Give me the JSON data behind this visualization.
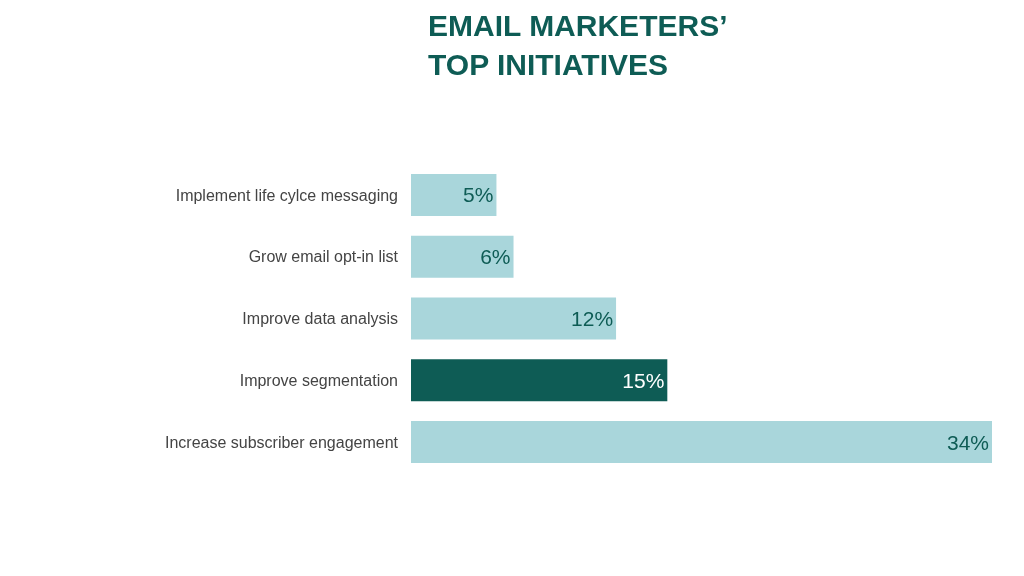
{
  "chart_data": {
    "type": "bar",
    "orientation": "horizontal",
    "title": "EMAIL MARKETERS’\nTOP INITIATIVES",
    "categories": [
      "Implement life cylce messaging",
      "Grow email opt-in list",
      "Improve data analysis",
      "Improve segmentation",
      "Increase subscriber engagement"
    ],
    "values": [
      5,
      6,
      12,
      15,
      34
    ],
    "value_labels": [
      "5%",
      "6%",
      "12%",
      "15%",
      "34%"
    ],
    "colors": [
      "#a9d6db",
      "#a9d6db",
      "#a9d6db",
      "#0e5c55",
      "#a9d6db"
    ],
    "legend": false
  }
}
